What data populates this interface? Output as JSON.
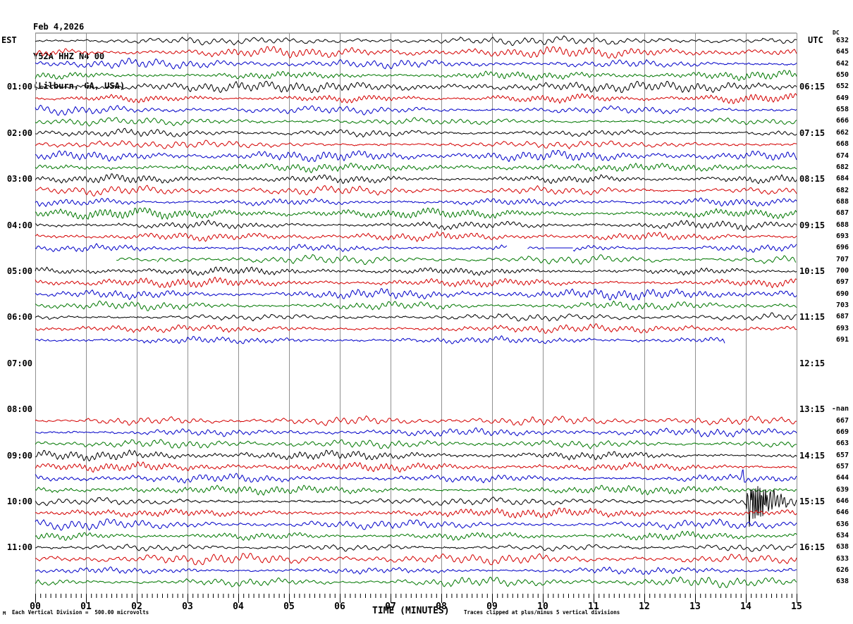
{
  "header": {
    "date": "Feb 4,2026",
    "station": "Y52A HHZ N4 00",
    "location": "(Lilburn, GA, USA)"
  },
  "axes": {
    "left_header": "EST",
    "right_header": "UTC",
    "dc_header": "DC"
  },
  "footer": {
    "corner_mark": "M",
    "division_note": "Each Vertical Division =  500.00 microvolts",
    "x_axis_title": "TIME (MINUTES)",
    "clipping_note": "Traces clipped at plus/minus 5 vertical divisions"
  },
  "chart_data": {
    "type": "line",
    "subtype": "helicorder-seismogram",
    "title": "Y52A HHZ N4 00 - Feb 4,2026 (Lilburn, GA, USA)",
    "xlabel": "TIME (MINUTES)",
    "x_range_minutes": [
      0,
      15
    ],
    "x_tick_labels": [
      "00",
      "01",
      "02",
      "03",
      "04",
      "05",
      "06",
      "07",
      "08",
      "09",
      "10",
      "11",
      "12",
      "13",
      "14",
      "15"
    ],
    "minor_ticks_per_minute": 10,
    "row_count": 48,
    "minutes_per_row": 15,
    "traces_per_hour": 4,
    "color_cycle": [
      "#000000",
      "#d40000",
      "#0000c8",
      "#007700"
    ],
    "grid_color": "#909090",
    "left_time_labels": {
      "4": "01:00",
      "8": "02:00",
      "12": "03:00",
      "16": "04:00",
      "20": "05:00",
      "24": "06:00",
      "28": "07:00",
      "32": "08:00",
      "36": "09:00",
      "40": "10:00",
      "44": "11:00"
    },
    "right_time_labels": {
      "4": "06:15",
      "8": "07:15",
      "12": "08:15",
      "16": "09:15",
      "20": "10:15",
      "24": "11:15",
      "28": "12:15",
      "32": "13:15",
      "36": "14:15",
      "40": "15:15",
      "44": "16:15"
    },
    "dc_offsets": [
      "632",
      "645",
      "642",
      "650",
      "652",
      "649",
      "658",
      "666",
      "662",
      "668",
      "674",
      "682",
      "684",
      "682",
      "688",
      "687",
      "688",
      "693",
      "696",
      "707",
      "700",
      "697",
      "690",
      "703",
      "687",
      "693",
      "691",
      null,
      null,
      null,
      null,
      null,
      "-nan",
      "667",
      "669",
      "663",
      "657",
      "657",
      "644",
      "639",
      "646",
      "646",
      "636",
      "634",
      "638",
      "633",
      "626",
      "638"
    ],
    "missing_rows": [
      27,
      28,
      29,
      30,
      31,
      32
    ],
    "segments_overrides": {
      "18": [
        {
          "from": 0,
          "to": 9.3,
          "mode": "noise"
        },
        {
          "from": 9.7,
          "to": 10.05,
          "mode": "noise",
          "amp": 0.45
        },
        {
          "from": 10.05,
          "to": 10.6,
          "mode": "flat"
        },
        {
          "from": 10.6,
          "to": 15,
          "mode": "noise"
        }
      ],
      "19": [
        {
          "from": 1.6,
          "to": 2.4,
          "mode": "noise",
          "amp": 0.4
        },
        {
          "from": 2.4,
          "to": 15,
          "mode": "noise"
        }
      ],
      "26": [
        {
          "from": 0,
          "to": 13.6,
          "mode": "noise"
        }
      ],
      "27": [],
      "28": [],
      "29": [],
      "30": [],
      "31": [],
      "32": []
    },
    "events": [
      {
        "row": 38,
        "minute": 13.94,
        "kind": "spike",
        "description": "brief spike on 09:30 EST blue trace near minute 14"
      },
      {
        "row": 40,
        "minute": 14.0,
        "kind": "burst",
        "description": "clipped seismic event burst with decaying coda on 10:00 EST / 15:15 UTC black trace starting at minute 14"
      }
    ]
  }
}
